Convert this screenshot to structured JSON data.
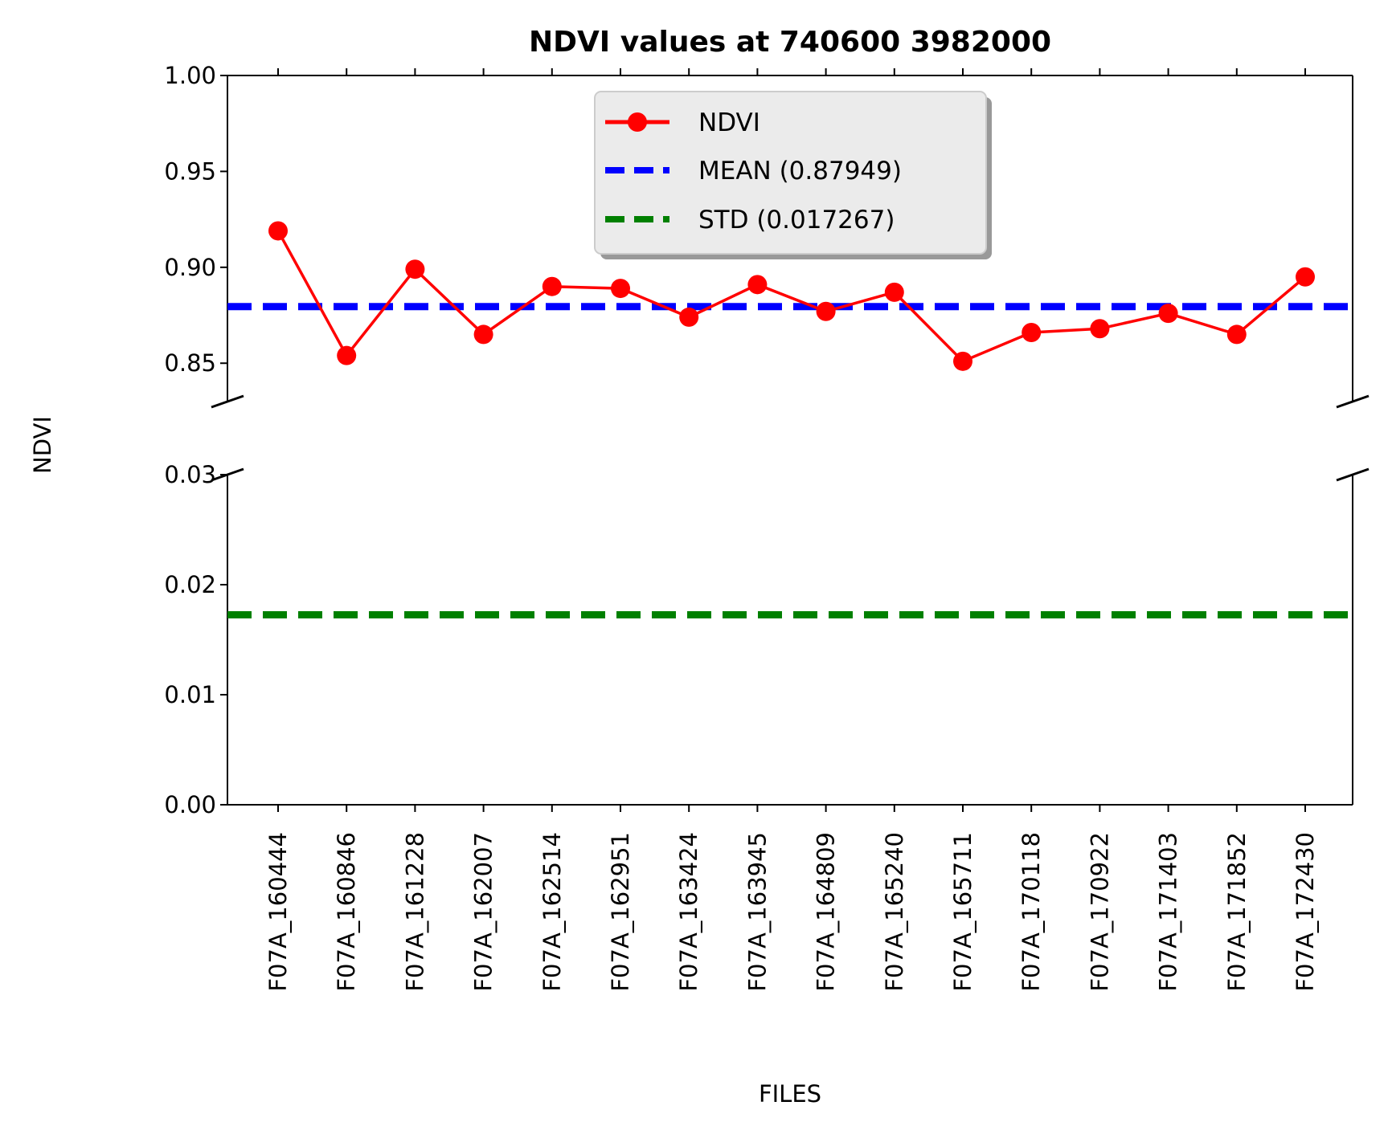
{
  "chart_data": {
    "type": "line",
    "title": "NDVI values at 740600 3982000",
    "xlabel": "FILES",
    "ylabel": "NDVI",
    "categories": [
      "F07A_160444",
      "F07A_160846",
      "F07A_161228",
      "F07A_162007",
      "F07A_162514",
      "F07A_162951",
      "F07A_163424",
      "F07A_163945",
      "F07A_164809",
      "F07A_165240",
      "F07A_165711",
      "F07A_170118",
      "F07A_170922",
      "F07A_171403",
      "F07A_171852",
      "F07A_172430"
    ],
    "series": [
      {
        "name": "NDVI",
        "color": "#ff0000",
        "marker": "circle",
        "values": [
          0.919,
          0.854,
          0.899,
          0.865,
          0.89,
          0.889,
          0.874,
          0.891,
          0.877,
          0.887,
          0.851,
          0.866,
          0.868,
          0.876,
          0.865,
          0.895
        ]
      }
    ],
    "reference_lines": [
      {
        "name": "MEAN (0.87949)",
        "value": 0.87949,
        "color": "#0000ff",
        "style": "dashed"
      },
      {
        "name": "STD (0.017267)",
        "value": 0.017267,
        "color": "#008000",
        "style": "dashed"
      }
    ],
    "broken_y_axis": true,
    "upper_ylim": [
      0.83,
      1.0
    ],
    "upper_yticks": [
      "0.85",
      "0.90",
      "0.95",
      "1.00"
    ],
    "lower_ylim": [
      0.0,
      0.03
    ],
    "lower_yticks": [
      "0.00",
      "0.01",
      "0.02",
      "0.03"
    ],
    "grid": false,
    "legend_position": "upper-center"
  }
}
